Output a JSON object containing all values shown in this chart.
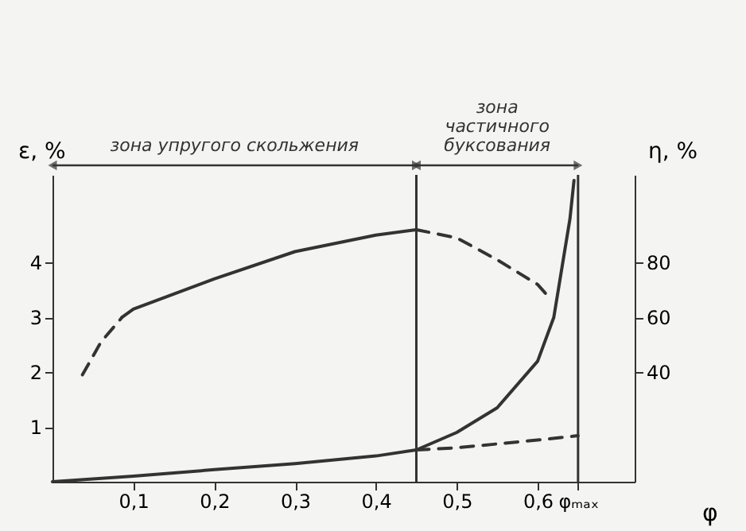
{
  "chart_data": {
    "type": "line",
    "xlabel": "φ",
    "ylabel": "ε, %",
    "y2label": "η, %",
    "xlim": [
      0,
      0.72
    ],
    "ylim": [
      0,
      5.6
    ],
    "y2lim": [
      0,
      112
    ],
    "xticks": [
      {
        "value": 0.1,
        "label": "0,1"
      },
      {
        "value": 0.2,
        "label": "0,2"
      },
      {
        "value": 0.3,
        "label": "0,3"
      },
      {
        "value": 0.4,
        "label": "0,4"
      },
      {
        "value": 0.5,
        "label": "0,5"
      },
      {
        "value": 0.6,
        "label": "0,6"
      },
      {
        "value": 0.65,
        "label": "φₘₐₓ"
      }
    ],
    "yticks": [
      1,
      2,
      3,
      4
    ],
    "y2ticks": [
      40,
      60,
      80
    ],
    "marker": "none",
    "series": [
      {
        "color": "#333333",
        "axis": "y2",
        "line_style": "dashed",
        "x": [
          0.037,
          0.06,
          0.086
        ],
        "values": [
          39,
          51,
          60
        ]
      },
      {
        "color": "#333333",
        "axis": "y2",
        "line_style": "solid",
        "x": [
          0.086,
          0.1,
          0.2,
          0.3,
          0.4,
          0.45
        ],
        "values": [
          60,
          63,
          74,
          84,
          90,
          92
        ]
      },
      {
        "color": "#333333",
        "axis": "y2",
        "line_style": "dashed",
        "x": [
          0.45,
          0.5,
          0.55,
          0.6,
          0.615
        ],
        "values": [
          92,
          89,
          81,
          72,
          67
        ]
      },
      {
        "color": "#333333",
        "axis": "y",
        "line_style": "solid",
        "x": [
          0,
          0.1,
          0.2,
          0.3,
          0.4,
          0.45,
          0.5,
          0.55,
          0.6,
          0.62,
          0.63,
          0.64,
          0.645
        ],
        "values": [
          0,
          0.1,
          0.22,
          0.33,
          0.47,
          0.58,
          0.9,
          1.35,
          2.2,
          3.0,
          3.9,
          4.8,
          5.5
        ]
      },
      {
        "color": "#333333",
        "axis": "y",
        "line_style": "dashed",
        "x": [
          0.45,
          0.5,
          0.6,
          0.65
        ],
        "values": [
          0.58,
          0.62,
          0.76,
          0.84
        ]
      }
    ],
    "ref_lines": [
      {
        "axis": "x",
        "value": 0.45
      },
      {
        "axis": "x",
        "value": 0.65
      }
    ],
    "annotations": [
      "зона упругого скольжения",
      "зона частичного буксования"
    ]
  }
}
